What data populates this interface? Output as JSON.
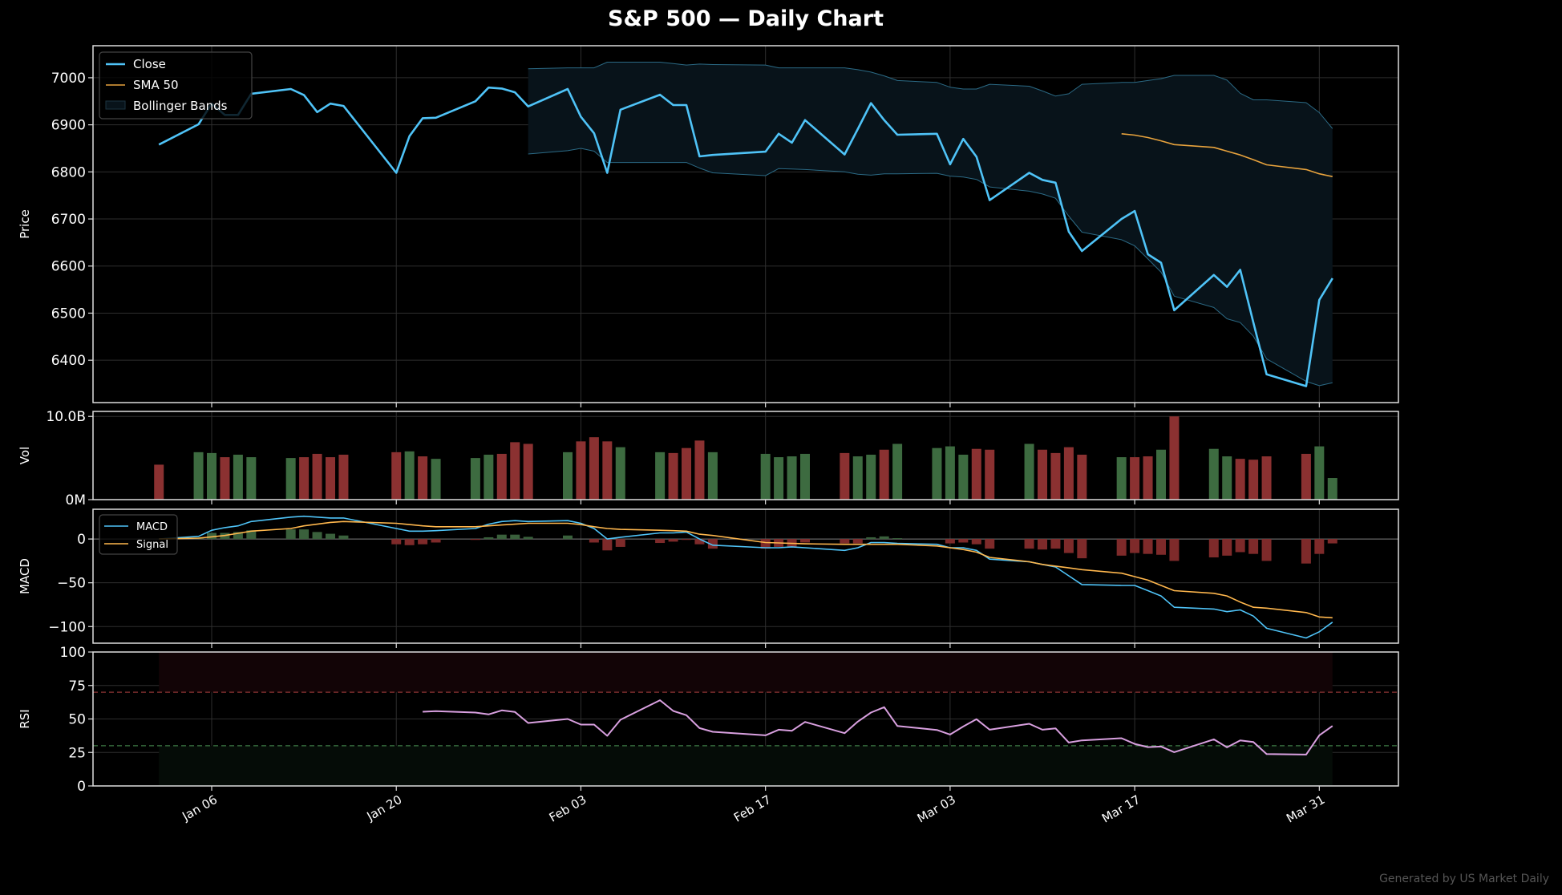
{
  "title": "S&P 500 — Daily Chart",
  "footer": "Generated by US Market Daily",
  "colors": {
    "background": "#000000",
    "close": "#4fc3f7",
    "sma50": "#e8a33d",
    "bollinger_fill": "#08131a",
    "bollinger_edge": "#2b6a85",
    "volume_up": "#3d6b40",
    "volume_down": "#8b3131",
    "macd": "#4fc3f7",
    "signal": "#ffb74d",
    "rsi": "#d9a0e0",
    "overbought": "#8b3333",
    "oversold": "#3d7a45"
  },
  "chart_data": [
    {
      "type": "line",
      "panel": "price",
      "ylabel": "Price",
      "ylim": [
        6310,
        7068
      ],
      "xlim": [
        "Dec 28",
        "Apr 06"
      ],
      "yticks": [
        6400,
        6500,
        6600,
        6700,
        6800,
        6900,
        7000
      ],
      "ytick_labels": [
        "6400",
        "6500",
        "6600",
        "6700",
        "6800",
        "6900",
        "7000"
      ],
      "grid": true,
      "legend": {
        "placement": "top-left",
        "entries": [
          "Close",
          "SMA 50",
          "Bollinger Bands"
        ]
      },
      "x": [
        "Jan 02",
        "Jan 05",
        "Jan 06",
        "Jan 07",
        "Jan 08",
        "Jan 09",
        "Jan 12",
        "Jan 13",
        "Jan 14",
        "Jan 15",
        "Jan 16",
        "Jan 20",
        "Jan 21",
        "Jan 22",
        "Jan 23",
        "Jan 26",
        "Jan 27",
        "Jan 28",
        "Jan 29",
        "Jan 30",
        "Feb 02",
        "Feb 03",
        "Feb 04",
        "Feb 05",
        "Feb 06",
        "Feb 09",
        "Feb 10",
        "Feb 11",
        "Feb 12",
        "Feb 13",
        "Feb 17",
        "Feb 18",
        "Feb 19",
        "Feb 20",
        "Feb 23",
        "Feb 24",
        "Feb 25",
        "Feb 26",
        "Feb 27",
        "Mar 02",
        "Mar 03",
        "Mar 04",
        "Mar 05",
        "Mar 06",
        "Mar 09",
        "Mar 10",
        "Mar 11",
        "Mar 12",
        "Mar 13",
        "Mar 16",
        "Mar 17",
        "Mar 18",
        "Mar 19",
        "Mar 20",
        "Mar 23",
        "Mar 24",
        "Mar 25",
        "Mar 26",
        "Mar 27",
        "Mar 30",
        "Mar 31",
        "Apr 01"
      ],
      "series": [
        {
          "name": "Close",
          "values": [
            6858,
            6901,
            6945,
            6921,
            6921,
            6966,
            6976,
            6963,
            6927,
            6945,
            6940,
            6798,
            6876,
            6914,
            6915,
            6950,
            6979,
            6977,
            6969,
            6939,
            6976,
            6917,
            6882,
            6798,
            6932,
            6964,
            6942,
            6942,
            6833,
            6836,
            6843,
            6881,
            6862,
            6910,
            6837,
            6891,
            6946,
            6910,
            6879,
            6881,
            6816,
            6870,
            6832,
            6740,
            6798,
            6783,
            6777,
            6673,
            6632,
            6700,
            6717,
            6625,
            6607,
            6506,
            6581,
            6556,
            6592,
            6480,
            6370,
            6345,
            6528,
            6574
          ]
        },
        {
          "name": "SMA 50",
          "values": [
            null,
            null,
            null,
            null,
            null,
            null,
            null,
            null,
            null,
            null,
            null,
            null,
            null,
            null,
            null,
            null,
            null,
            null,
            null,
            null,
            null,
            null,
            null,
            null,
            null,
            null,
            null,
            null,
            null,
            null,
            null,
            null,
            null,
            null,
            null,
            null,
            null,
            null,
            null,
            null,
            null,
            null,
            null,
            null,
            null,
            null,
            null,
            null,
            null,
            6881,
            6878,
            6873,
            6866,
            6858,
            6852,
            6844,
            6836,
            6826,
            6815,
            6805,
            6796,
            6790
          ]
        },
        {
          "name": "Bollinger Bands",
          "upper": [
            null,
            null,
            null,
            null,
            null,
            null,
            null,
            null,
            null,
            null,
            null,
            null,
            null,
            null,
            null,
            null,
            null,
            null,
            null,
            7019,
            7021,
            7021,
            7021,
            7033,
            7033,
            7033,
            7030,
            7027,
            7029,
            7028,
            7027,
            7021,
            7021,
            7021,
            7021,
            7017,
            7012,
            7004,
            6994,
            6990,
            6980,
            6976,
            6976,
            6986,
            6982,
            6972,
            6961,
            6966,
            6986,
            6990,
            6990,
            6994,
            6998,
            7005,
            7005,
            6995,
            6967,
            6953,
            6953,
            6947,
            6926,
            6892
          ],
          "lower": [
            null,
            null,
            null,
            null,
            null,
            null,
            null,
            null,
            null,
            null,
            null,
            null,
            null,
            null,
            null,
            null,
            null,
            null,
            null,
            6838,
            6845,
            6850,
            6844,
            6820,
            6820,
            6820,
            6820,
            6820,
            6808,
            6798,
            6792,
            6807,
            6806,
            6805,
            6800,
            6795,
            6793,
            6796,
            6796,
            6797,
            6791,
            6789,
            6784,
            6768,
            6759,
            6753,
            6744,
            6706,
            6672,
            6656,
            6643,
            6615,
            6587,
            6536,
            6512,
            6488,
            6480,
            6451,
            6403,
            6355,
            6346,
            6352
          ]
        }
      ]
    },
    {
      "type": "bar",
      "panel": "volume",
      "ylabel": "Vol",
      "unit": "B",
      "ylim": [
        0,
        10.6
      ],
      "yticks": [
        0,
        10
      ],
      "ytick_labels": [
        "0M",
        "10.0B"
      ],
      "grid": true,
      "values": [
        4.2,
        5.7,
        5.6,
        5.1,
        5.4,
        5.1,
        5.0,
        5.1,
        5.5,
        5.1,
        5.4,
        5.7,
        5.8,
        5.2,
        4.9,
        5.0,
        5.4,
        5.5,
        6.9,
        6.7,
        5.7,
        7.0,
        7.5,
        7.0,
        6.3,
        5.7,
        5.6,
        6.2,
        7.1,
        5.7,
        5.5,
        5.1,
        5.2,
        5.5,
        5.6,
        5.2,
        5.4,
        6.0,
        6.7,
        6.2,
        6.4,
        5.4,
        6.1,
        6.0,
        6.7,
        6.0,
        5.6,
        6.3,
        5.4,
        5.1,
        5.1,
        5.2,
        6.0,
        10.0,
        6.1,
        5.2,
        4.9,
        4.8,
        5.2,
        5.5,
        6.4,
        2.6
      ],
      "direction": [
        "down",
        "up",
        "up",
        "down",
        "up",
        "up",
        "up",
        "down",
        "down",
        "down",
        "down",
        "down",
        "up",
        "down",
        "up",
        "up",
        "up",
        "down",
        "down",
        "down",
        "up",
        "down",
        "down",
        "down",
        "up",
        "up",
        "down",
        "down",
        "down",
        "up",
        "up",
        "up",
        "up",
        "up",
        "down",
        "up",
        "up",
        "down",
        "up",
        "up",
        "up",
        "up",
        "down",
        "down",
        "up",
        "down",
        "down",
        "down",
        "down",
        "up",
        "down",
        "down",
        "up",
        "down",
        "up",
        "up",
        "down",
        "down",
        "down",
        "down",
        "up",
        "up"
      ]
    },
    {
      "type": "line",
      "panel": "macd",
      "ylabel": "MACD",
      "ylim": [
        -119,
        34
      ],
      "yticks": [
        -100,
        -50,
        0
      ],
      "ytick_labels": [
        "−100",
        "−50",
        "0"
      ],
      "grid": true,
      "legend": {
        "placement": "top-left",
        "entries": [
          "MACD",
          "Signal"
        ]
      },
      "series": [
        {
          "name": "MACD",
          "values": [
            0,
            3,
            10,
            13,
            15,
            20,
            25,
            26,
            25,
            24,
            24,
            12,
            9,
            9,
            9.5,
            12,
            17,
            20,
            21,
            20,
            21,
            18,
            12,
            0,
            2,
            7,
            7,
            8,
            0,
            -7,
            -10,
            -10,
            -9,
            -10,
            -13,
            -10,
            -4,
            -4,
            -5,
            -6,
            -10,
            -10,
            -13,
            -23,
            -26,
            -29,
            -32,
            -42,
            -52,
            -53,
            -53,
            -59,
            -65,
            -78,
            -80,
            -83,
            -81,
            -88,
            -102,
            -113,
            -106,
            -95
          ]
        },
        {
          "name": "Signal",
          "values": [
            0,
            1,
            2.5,
            4,
            6.5,
            9,
            12,
            15,
            17,
            19,
            20,
            18,
            16.5,
            15,
            14,
            14,
            15,
            16,
            17,
            18,
            18,
            16.5,
            14,
            12,
            11,
            10,
            9.5,
            9,
            5.5,
            4,
            -4,
            -4.5,
            -5,
            -5.5,
            -6,
            -6,
            -6,
            -6,
            -6,
            -8,
            -10,
            -12,
            -15,
            -21,
            -26,
            -29,
            -31,
            -33,
            -35,
            -39,
            -43,
            -47,
            -53,
            -59,
            -62,
            -65,
            -72,
            -78,
            -79,
            -84,
            -89,
            -90
          ]
        }
      ],
      "histogram": [
        0,
        1,
        7,
        7,
        8,
        10,
        11,
        11,
        8,
        6,
        4,
        -6,
        -7,
        -6,
        -4,
        -1,
        2,
        5,
        5,
        2.5,
        4,
        0,
        -4,
        -13,
        -9,
        -4.5,
        -3,
        -1,
        -6,
        -11,
        -11,
        -9,
        -9,
        -4,
        -5,
        -5,
        2,
        3,
        1,
        0,
        -5,
        -4,
        -6,
        -11,
        -11,
        -12,
        -11,
        -16,
        -22,
        -19,
        -16,
        -17,
        -18,
        -25,
        -21,
        -19,
        -15,
        -17,
        -25,
        -28,
        -17,
        -5
      ]
    },
    {
      "type": "line",
      "panel": "rsi",
      "ylabel": "RSI",
      "ylim": [
        0,
        100
      ],
      "yticks": [
        0,
        25,
        50,
        75,
        100
      ],
      "ytick_labels": [
        "0",
        "25",
        "50",
        "75",
        "100"
      ],
      "overbought": 70,
      "oversold": 30,
      "grid": true,
      "values": [
        null,
        null,
        null,
        null,
        null,
        null,
        null,
        null,
        null,
        null,
        null,
        null,
        null,
        55.4,
        55.8,
        54.8,
        53.4,
        56.4,
        55.2,
        47,
        50,
        45.8,
        45.8,
        37.4,
        49.4,
        64,
        56,
        52.8,
        43.2,
        40.4,
        37.8,
        42,
        41.2,
        47.8,
        39.4,
        48,
        54.8,
        58.8,
        44.8,
        41.8,
        38.4,
        44.4,
        49.8,
        42,
        46.4,
        42,
        43,
        32.4,
        34,
        35.6,
        31.4,
        29,
        29.4,
        25.2,
        34.8,
        28.8,
        34,
        32.8,
        23.8,
        23.4,
        37.8,
        44.8
      ],
      "xticks": [
        "Jan 06",
        "Jan 20",
        "Feb 03",
        "Feb 17",
        "Mar 03",
        "Mar 17",
        "Mar 31"
      ]
    }
  ]
}
